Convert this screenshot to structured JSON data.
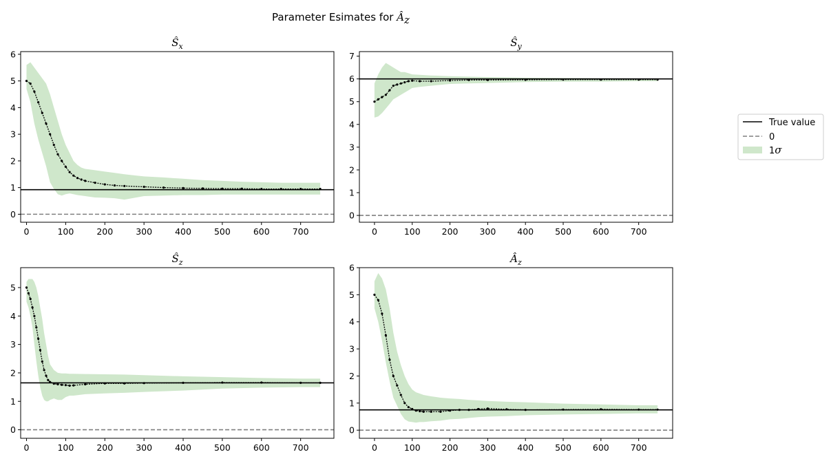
{
  "figure": {
    "suptitle_prefix": "Parameter Esimates for ",
    "suptitle_symbol": "Â",
    "suptitle_sub": "z"
  },
  "legend": {
    "true_label": "True value",
    "zero_label": "0",
    "band_label_prefix": "1",
    "band_label_symbol": "σ"
  },
  "colors": {
    "band": "#cfe7cb",
    "estimate": "#000000",
    "true_line": "#000000",
    "zero_line": "#7f7f7f"
  },
  "chart_data": [
    {
      "type": "line",
      "title_symbol": "Ŝ",
      "title_sub": "x",
      "xlim": [
        -15,
        785
      ],
      "ylim": [
        -0.3,
        6.1
      ],
      "xticks": [
        0,
        100,
        200,
        300,
        400,
        500,
        600,
        700
      ],
      "yticks": [
        0,
        1,
        2,
        3,
        4,
        5,
        6
      ],
      "true_value": 0.92,
      "zero": 0,
      "series": [
        {
          "role": "estimate",
          "x": [
            0,
            10,
            20,
            30,
            40,
            50,
            60,
            70,
            80,
            90,
            100,
            110,
            120,
            130,
            140,
            150,
            175,
            200,
            225,
            250,
            300,
            350,
            400,
            450,
            500,
            550,
            600,
            650,
            700,
            750
          ],
          "y": [
            5.0,
            4.9,
            4.6,
            4.2,
            3.8,
            3.4,
            3.0,
            2.6,
            2.25,
            2.0,
            1.78,
            1.58,
            1.45,
            1.36,
            1.3,
            1.25,
            1.18,
            1.12,
            1.08,
            1.06,
            1.03,
            1.0,
            0.98,
            0.97,
            0.96,
            0.96,
            0.95,
            0.95,
            0.95,
            0.95
          ]
        },
        {
          "role": "band_lower",
          "x": [
            0,
            10,
            20,
            30,
            40,
            50,
            60,
            70,
            80,
            90,
            100,
            110,
            120,
            130,
            140,
            150,
            175,
            200,
            225,
            250,
            300,
            350,
            400,
            450,
            500,
            550,
            600,
            650,
            700,
            750
          ],
          "y": [
            4.7,
            4.2,
            3.4,
            2.8,
            2.3,
            1.8,
            1.2,
            0.95,
            0.75,
            0.7,
            0.75,
            0.78,
            0.75,
            0.72,
            0.7,
            0.68,
            0.63,
            0.62,
            0.6,
            0.55,
            0.68,
            0.7,
            0.72,
            0.72,
            0.74,
            0.74,
            0.74,
            0.74,
            0.74,
            0.74
          ]
        },
        {
          "role": "band_upper",
          "x": [
            0,
            10,
            20,
            30,
            40,
            50,
            60,
            70,
            80,
            90,
            100,
            110,
            120,
            130,
            140,
            150,
            175,
            200,
            225,
            250,
            300,
            350,
            400,
            450,
            500,
            550,
            600,
            650,
            700,
            750
          ],
          "y": [
            5.6,
            5.7,
            5.5,
            5.3,
            5.1,
            4.9,
            4.5,
            4.0,
            3.5,
            3.0,
            2.6,
            2.3,
            2.0,
            1.85,
            1.75,
            1.7,
            1.65,
            1.6,
            1.55,
            1.5,
            1.42,
            1.38,
            1.33,
            1.28,
            1.25,
            1.22,
            1.2,
            1.18,
            1.18,
            1.18
          ]
        }
      ]
    },
    {
      "type": "line",
      "title_symbol": "Ŝ",
      "title_sub": "y",
      "xlim": [
        -40,
        790
      ],
      "ylim": [
        -0.3,
        7.2
      ],
      "xticks": [
        0,
        100,
        200,
        300,
        400,
        500,
        600,
        700
      ],
      "yticks": [
        0,
        1,
        2,
        3,
        4,
        5,
        6,
        7
      ],
      "true_value": 6.0,
      "zero": 0,
      "series": [
        {
          "role": "estimate",
          "x": [
            0,
            10,
            20,
            30,
            40,
            50,
            60,
            70,
            80,
            90,
            100,
            120,
            150,
            200,
            250,
            300,
            400,
            500,
            600,
            700,
            750
          ],
          "y": [
            5.0,
            5.1,
            5.2,
            5.3,
            5.5,
            5.7,
            5.75,
            5.8,
            5.85,
            5.9,
            5.92,
            5.9,
            5.9,
            5.93,
            5.95,
            5.95,
            5.96,
            5.97,
            5.97,
            5.97,
            5.97
          ]
        },
        {
          "role": "band_lower",
          "x": [
            0,
            10,
            20,
            30,
            40,
            50,
            60,
            70,
            80,
            90,
            100,
            120,
            150,
            200,
            250,
            300,
            400,
            500,
            600,
            700,
            750
          ],
          "y": [
            4.3,
            4.35,
            4.5,
            4.7,
            4.9,
            5.1,
            5.2,
            5.3,
            5.4,
            5.5,
            5.6,
            5.65,
            5.7,
            5.78,
            5.8,
            5.82,
            5.86,
            5.88,
            5.88,
            5.9,
            5.9
          ]
        },
        {
          "role": "band_upper",
          "x": [
            0,
            10,
            20,
            30,
            40,
            50,
            60,
            70,
            80,
            90,
            100,
            120,
            150,
            200,
            250,
            300,
            400,
            500,
            600,
            700,
            750
          ],
          "y": [
            5.8,
            6.2,
            6.5,
            6.7,
            6.6,
            6.5,
            6.4,
            6.3,
            6.3,
            6.25,
            6.2,
            6.18,
            6.15,
            6.12,
            6.1,
            6.08,
            6.05,
            6.04,
            6.03,
            6.02,
            6.02
          ]
        }
      ]
    },
    {
      "type": "line",
      "title_symbol": "Ŝ",
      "title_sub": "z",
      "xlim": [
        -15,
        785
      ],
      "ylim": [
        -0.3,
        5.7
      ],
      "xticks": [
        0,
        100,
        200,
        300,
        400,
        500,
        600,
        700
      ],
      "yticks": [
        0,
        1,
        2,
        3,
        4,
        5
      ],
      "true_value": 1.65,
      "zero": 0,
      "series": [
        {
          "role": "estimate",
          "x": [
            0,
            5,
            10,
            15,
            20,
            25,
            30,
            35,
            40,
            45,
            50,
            55,
            60,
            70,
            80,
            90,
            100,
            110,
            120,
            150,
            200,
            250,
            300,
            400,
            500,
            600,
            700,
            750
          ],
          "y": [
            5.0,
            4.8,
            4.6,
            4.3,
            4.0,
            3.6,
            3.2,
            2.8,
            2.4,
            2.1,
            1.9,
            1.75,
            1.68,
            1.62,
            1.6,
            1.58,
            1.57,
            1.55,
            1.56,
            1.6,
            1.63,
            1.63,
            1.64,
            1.65,
            1.66,
            1.66,
            1.65,
            1.65
          ]
        },
        {
          "role": "band_lower",
          "x": [
            0,
            5,
            10,
            15,
            20,
            25,
            30,
            35,
            40,
            45,
            50,
            55,
            60,
            70,
            80,
            90,
            100,
            110,
            120,
            150,
            200,
            250,
            300,
            400,
            500,
            600,
            700,
            750
          ],
          "y": [
            4.5,
            4.3,
            4.0,
            3.6,
            3.0,
            2.4,
            1.9,
            1.5,
            1.2,
            1.05,
            1.0,
            1.0,
            1.05,
            1.1,
            1.05,
            1.05,
            1.15,
            1.2,
            1.2,
            1.25,
            1.28,
            1.3,
            1.33,
            1.38,
            1.45,
            1.48,
            1.5,
            1.5
          ]
        },
        {
          "role": "band_upper",
          "x": [
            0,
            5,
            10,
            15,
            20,
            25,
            30,
            35,
            40,
            45,
            50,
            55,
            60,
            70,
            80,
            90,
            100,
            110,
            120,
            150,
            200,
            250,
            300,
            400,
            500,
            600,
            700,
            750
          ],
          "y": [
            5.2,
            5.3,
            5.3,
            5.3,
            5.2,
            5.0,
            4.7,
            4.3,
            3.9,
            3.4,
            3.0,
            2.6,
            2.3,
            2.1,
            2.0,
            1.98,
            1.98,
            1.97,
            1.97,
            1.96,
            1.95,
            1.94,
            1.92,
            1.88,
            1.85,
            1.82,
            1.8,
            1.8
          ]
        }
      ]
    },
    {
      "type": "line",
      "title_symbol": "Â",
      "title_sub": "z",
      "xlim": [
        -40,
        790
      ],
      "ylim": [
        -0.3,
        6.0
      ],
      "xticks": [
        0,
        100,
        200,
        300,
        400,
        500,
        600,
        700
      ],
      "yticks": [
        0,
        1,
        2,
        3,
        4,
        5,
        6
      ],
      "true_value": 0.75,
      "zero": 0,
      "series": [
        {
          "role": "estimate",
          "x": [
            0,
            10,
            20,
            30,
            40,
            50,
            60,
            70,
            80,
            90,
            100,
            110,
            120,
            130,
            150,
            175,
            200,
            225,
            250,
            275,
            300,
            350,
            400,
            500,
            600,
            700,
            750
          ],
          "y": [
            5.0,
            4.8,
            4.3,
            3.5,
            2.6,
            2.0,
            1.65,
            1.3,
            1.0,
            0.85,
            0.78,
            0.72,
            0.7,
            0.68,
            0.68,
            0.68,
            0.72,
            0.75,
            0.75,
            0.78,
            0.8,
            0.77,
            0.75,
            0.76,
            0.77,
            0.76,
            0.76
          ]
        },
        {
          "role": "band_lower",
          "x": [
            0,
            10,
            20,
            30,
            40,
            50,
            60,
            70,
            80,
            90,
            100,
            110,
            120,
            130,
            150,
            175,
            200,
            225,
            250,
            275,
            300,
            350,
            400,
            500,
            600,
            700,
            750
          ],
          "y": [
            4.5,
            4.0,
            3.3,
            2.5,
            1.8,
            1.2,
            0.9,
            0.6,
            0.4,
            0.32,
            0.3,
            0.28,
            0.3,
            0.3,
            0.33,
            0.35,
            0.4,
            0.42,
            0.45,
            0.48,
            0.5,
            0.52,
            0.55,
            0.58,
            0.6,
            0.62,
            0.62
          ]
        },
        {
          "role": "band_upper",
          "x": [
            0,
            10,
            20,
            30,
            40,
            50,
            60,
            70,
            80,
            90,
            100,
            110,
            120,
            130,
            150,
            175,
            200,
            225,
            250,
            275,
            300,
            350,
            400,
            500,
            600,
            700,
            750
          ],
          "y": [
            5.5,
            5.8,
            5.6,
            5.2,
            4.5,
            3.6,
            2.9,
            2.4,
            2.0,
            1.7,
            1.5,
            1.4,
            1.35,
            1.3,
            1.25,
            1.2,
            1.17,
            1.15,
            1.12,
            1.1,
            1.08,
            1.05,
            1.03,
            0.98,
            0.95,
            0.92,
            0.92
          ]
        }
      ]
    }
  ]
}
